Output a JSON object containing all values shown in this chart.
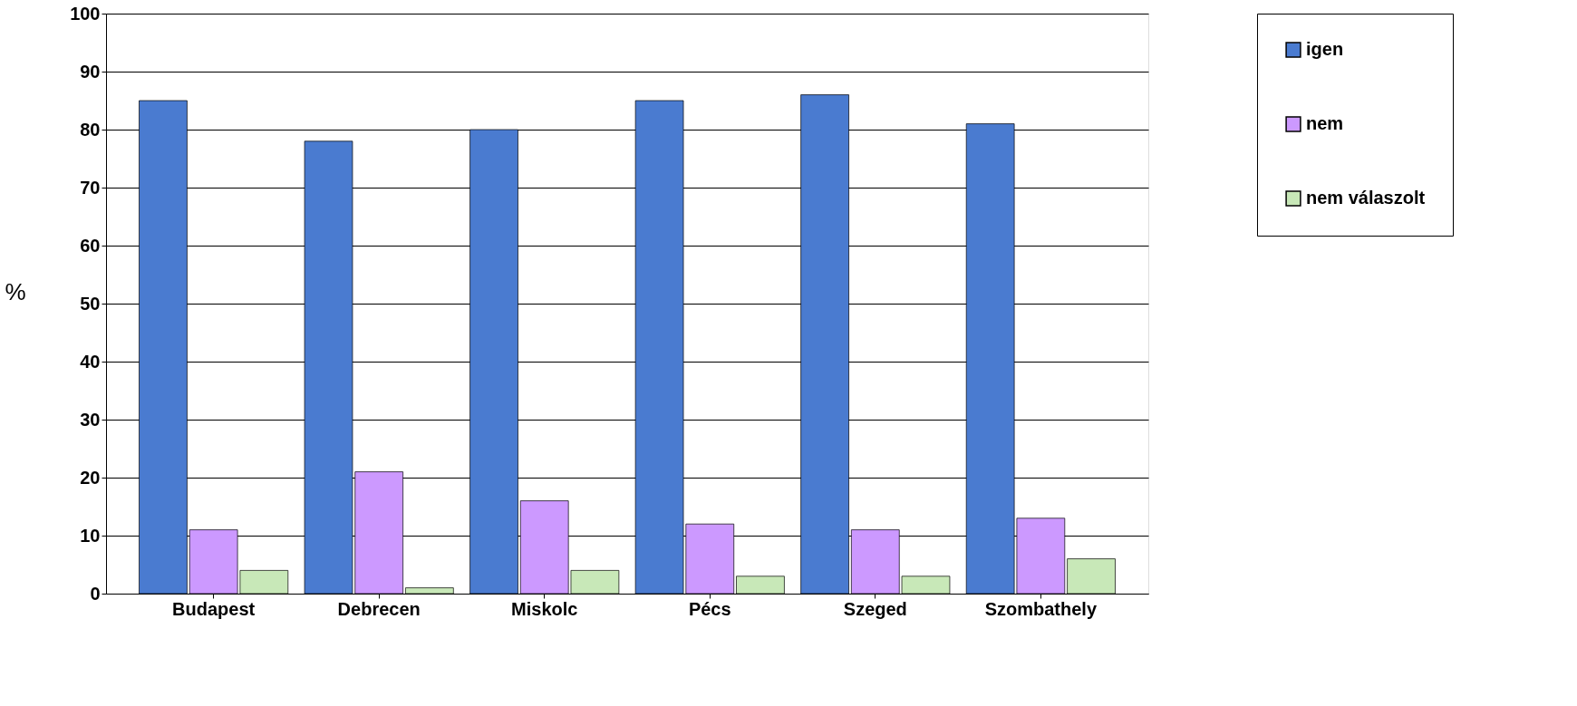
{
  "chart_data": {
    "type": "bar",
    "ylabel": "%",
    "categories": [
      "Budapest",
      "Debrecen",
      "Miskolc",
      "Pécs",
      "Szeged",
      "Szombathely"
    ],
    "series": [
      {
        "name": "igen",
        "color": "#4a7bd0",
        "values": [
          85,
          78,
          80,
          85,
          86,
          81
        ]
      },
      {
        "name": "nem",
        "color": "#cc99ff",
        "values": [
          11,
          21,
          16,
          12,
          11,
          13
        ]
      },
      {
        "name": "nem válaszolt",
        "color": "#c8e8b8",
        "values": [
          4,
          1,
          4,
          3,
          3,
          6
        ]
      }
    ],
    "ylim": [
      0,
      100
    ],
    "yticks": [
      0,
      10,
      20,
      30,
      40,
      50,
      60,
      70,
      80,
      90,
      100
    ],
    "grid": "y",
    "legend": "right"
  }
}
